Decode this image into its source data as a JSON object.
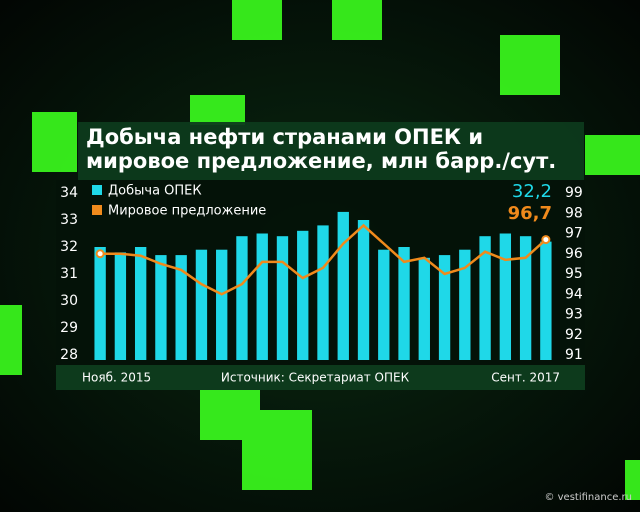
{
  "chart_data": {
    "type": "bar-line",
    "title": "Добыча нефти странами ОПЕК и мировое предложение, млн барр./сут.",
    "source": "Источник: Секретариат ОПЕК",
    "watermark": "© vestifinance.ru",
    "categories": [
      "Нояб. 2015",
      null,
      null,
      null,
      null,
      null,
      null,
      null,
      null,
      null,
      null,
      null,
      null,
      null,
      null,
      null,
      null,
      null,
      null,
      null,
      null,
      null,
      "Сент. 2017"
    ],
    "series": [
      {
        "name": "Добыча ОПЕК",
        "color": "#1fd8e8",
        "axis": "y",
        "values": [
          32.0,
          31.8,
          32.0,
          31.7,
          31.7,
          31.9,
          31.9,
          32.4,
          32.5,
          32.4,
          32.6,
          32.8,
          33.3,
          33.0,
          31.9,
          32.0,
          31.6,
          31.7,
          31.9,
          32.4,
          32.5,
          32.4,
          32.2
        ],
        "value_labels": [
          null,
          null,
          null,
          null,
          null,
          null,
          null,
          null,
          null,
          null,
          null,
          null,
          null,
          null,
          null,
          null,
          null,
          null,
          null,
          null,
          null,
          null,
          "32,2"
        ]
      },
      {
        "name": "Мировое предложение",
        "color": "#f08a1c",
        "axis": "y2",
        "values": [
          96.0,
          96.0,
          95.9,
          95.5,
          95.2,
          94.5,
          94.0,
          94.5,
          95.6,
          95.6,
          94.8,
          95.3,
          96.5,
          97.4,
          96.5,
          95.6,
          95.8,
          95.0,
          95.3,
          96.1,
          95.7,
          95.8,
          96.7
        ],
        "value_labels": [
          null,
          null,
          null,
          null,
          null,
          null,
          null,
          null,
          null,
          null,
          null,
          null,
          null,
          null,
          null,
          null,
          null,
          null,
          null,
          null,
          null,
          null,
          "96,7"
        ]
      }
    ],
    "ylim": [
      28,
      34
    ],
    "yticks": [
      28,
      29,
      30,
      31,
      32,
      33,
      34
    ],
    "y2lim": [
      91,
      99
    ],
    "y2ticks": [
      91,
      92,
      93,
      94,
      95,
      96,
      97,
      98,
      99
    ]
  }
}
